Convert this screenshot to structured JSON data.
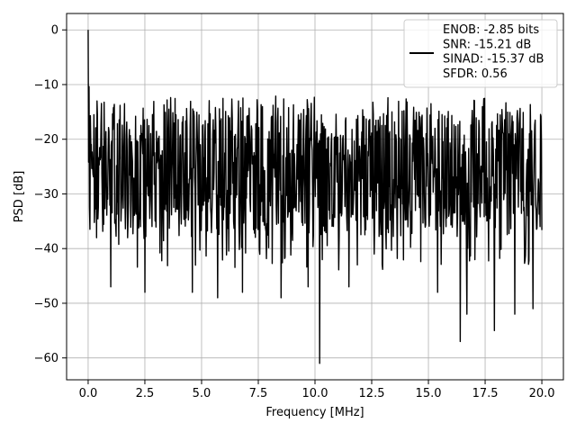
{
  "chart_data": {
    "type": "line",
    "title": "",
    "xlabel": "Frequency [MHz]",
    "ylabel": "PSD [dB]",
    "xlim": [
      -0.95,
      20.95
    ],
    "ylim": [
      -64.0,
      3.0
    ],
    "x_ticks": [
      0.0,
      2.5,
      5.0,
      7.5,
      10.0,
      12.5,
      15.0,
      17.5,
      20.0
    ],
    "x_tick_labels": [
      "0.0",
      "2.5",
      "5.0",
      "7.5",
      "10.0",
      "12.5",
      "15.0",
      "17.5",
      "20.0"
    ],
    "y_ticks": [
      0,
      -10,
      -20,
      -30,
      -40,
      -50,
      -60
    ],
    "y_tick_labels": [
      "0",
      "−10",
      "−20",
      "−30",
      "−40",
      "−50",
      "−60"
    ],
    "grid": true,
    "legend_position": "top-right",
    "legend_lines": [
      "ENOB: -2.85 bits",
      "SNR: -15.21 dB",
      "SINAD: -15.37 dB",
      "SFDR: 0.56"
    ],
    "series": [
      {
        "color": "#000000",
        "x_range": [
          0.0,
          20.0
        ],
        "n_points": 1024,
        "noise_band_db": [
          -35.0,
          -15.0
        ],
        "noise_center_db": -26.0,
        "features": [
          {
            "x": 0.0,
            "y": 0.0
          },
          {
            "x": 0.03,
            "y": -4.0
          },
          {
            "x": 0.1,
            "y": -9.0
          },
          {
            "x": 0.2,
            "y": -25.0
          },
          {
            "x": 1.0,
            "y": -47.0
          },
          {
            "x": 2.5,
            "y": -48.0
          },
          {
            "x": 4.6,
            "y": -48.0
          },
          {
            "x": 5.7,
            "y": -49.0
          },
          {
            "x": 6.8,
            "y": -48.0
          },
          {
            "x": 8.5,
            "y": -49.0
          },
          {
            "x": 9.7,
            "y": -47.0
          },
          {
            "x": 10.2,
            "y": -61.0
          },
          {
            "x": 11.5,
            "y": -47.0
          },
          {
            "x": 15.4,
            "y": -48.0
          },
          {
            "x": 16.4,
            "y": -57.0
          },
          {
            "x": 16.7,
            "y": -52.0
          },
          {
            "x": 17.9,
            "y": -55.0
          },
          {
            "x": 18.8,
            "y": -52.0
          },
          {
            "x": 19.6,
            "y": -51.0
          },
          {
            "x": 0.4,
            "y": -13.0
          },
          {
            "x": 1.6,
            "y": -13.5
          },
          {
            "x": 13.4,
            "y": -15.0
          },
          {
            "x": 15.6,
            "y": -15.5
          },
          {
            "x": 18.9,
            "y": -16.0
          }
        ]
      }
    ]
  }
}
